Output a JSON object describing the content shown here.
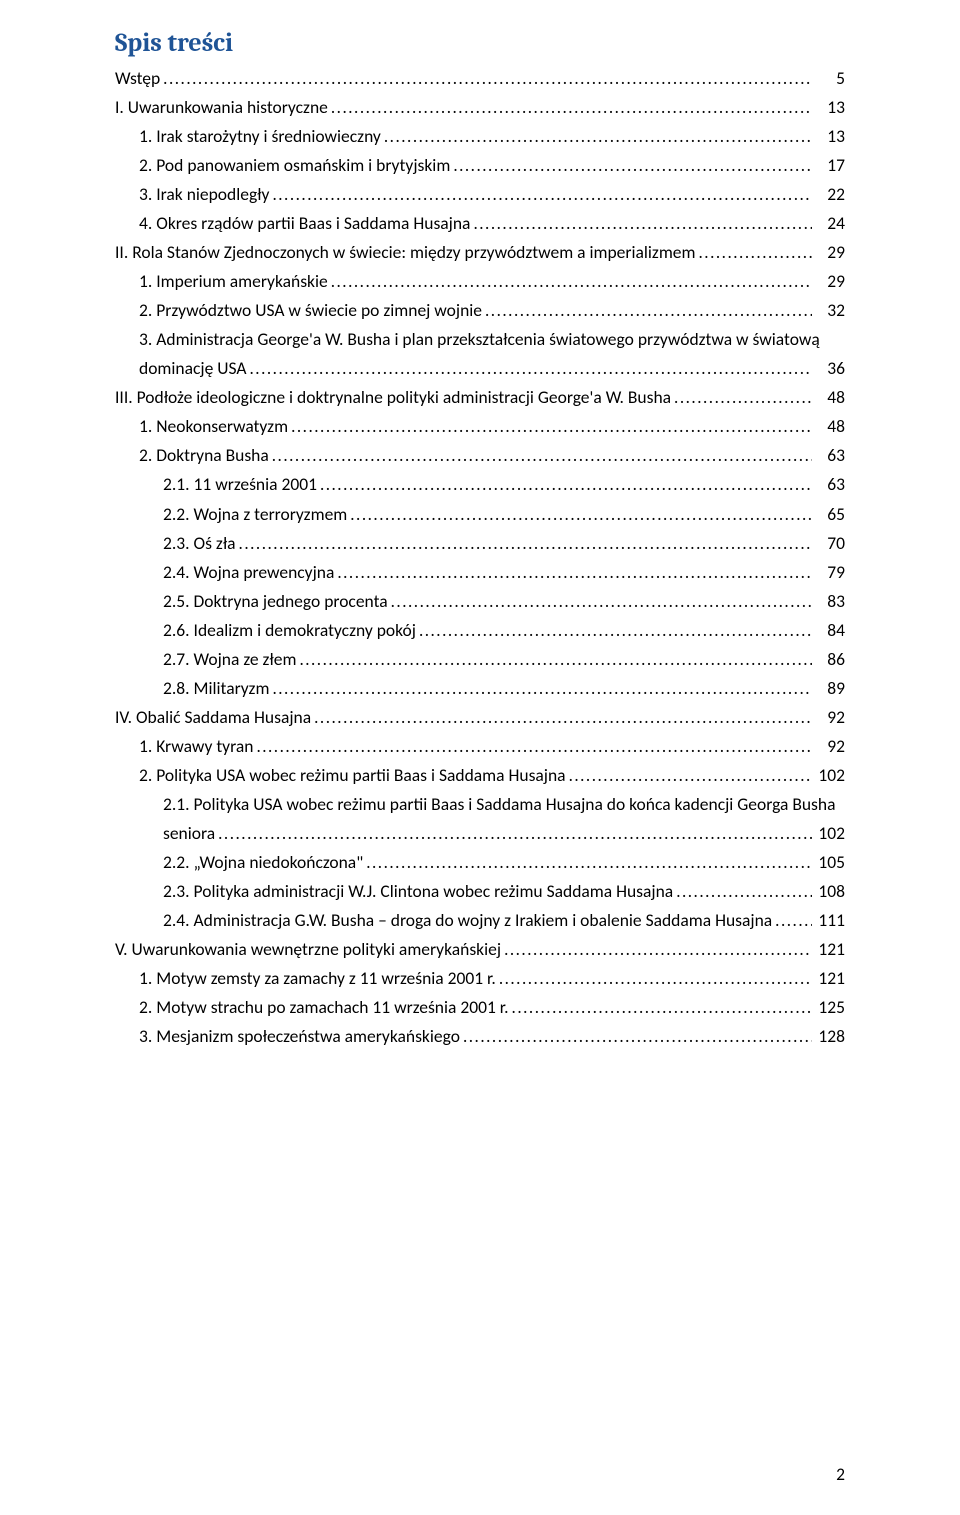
{
  "heading": "Spis treści",
  "page_number": "2",
  "colors": {
    "heading": "#1f5496",
    "text": "#000000",
    "background": "#ffffff"
  },
  "typography": {
    "heading_font": "Cambria",
    "body_font": "Calibri",
    "heading_size_pt": 20,
    "body_size_pt": 13
  },
  "toc": [
    {
      "indent": 0,
      "label": "Wstęp",
      "page": "5"
    },
    {
      "indent": 0,
      "label": "I. Uwarunkowania historyczne",
      "page": "13"
    },
    {
      "indent": 1,
      "label": "1. Irak starożytny i średniowieczny",
      "page": "13"
    },
    {
      "indent": 1,
      "label": "2. Pod panowaniem osmańskim i brytyjskim",
      "page": "17"
    },
    {
      "indent": 1,
      "label": "3. Irak niepodległy",
      "page": "22"
    },
    {
      "indent": 1,
      "label": "4. Okres rządów partii Baas i Saddama Husajna",
      "page": "24"
    },
    {
      "indent": 0,
      "label": "II. Rola Stanów Zjednoczonych w świecie: między przywództwem a imperializmem",
      "page": "29"
    },
    {
      "indent": 1,
      "label": "1. Imperium amerykańskie",
      "page": "29"
    },
    {
      "indent": 1,
      "label": "2. Przywództwo USA w świecie po zimnej wojnie",
      "page": "32"
    },
    {
      "indent": 1,
      "label_line1": "3. Administracja George'a W. Busha i plan przekształcenia światowego przywództwa w światową",
      "label_line2": "dominację USA",
      "page": "36",
      "two_line": true
    },
    {
      "indent": 0,
      "label": "III. Podłoże ideologiczne i doktrynalne polityki administracji George'a W. Busha",
      "page": "48"
    },
    {
      "indent": 1,
      "label": "1. Neokonserwatyzm",
      "page": "48"
    },
    {
      "indent": 1,
      "label": "2. Doktryna Busha",
      "page": "63"
    },
    {
      "indent": 2,
      "label": "2.1. 11 września 2001",
      "page": "63"
    },
    {
      "indent": 2,
      "label": "2.2. Wojna z terroryzmem",
      "page": "65"
    },
    {
      "indent": 2,
      "label": "2.3. Oś zła",
      "page": "70"
    },
    {
      "indent": 2,
      "label": "2.4. Wojna prewencyjna",
      "page": "79"
    },
    {
      "indent": 2,
      "label": "2.5. Doktryna jednego procenta",
      "page": "83"
    },
    {
      "indent": 2,
      "label": "2.6. Idealizm i demokratyczny pokój",
      "page": "84"
    },
    {
      "indent": 2,
      "label": "2.7. Wojna ze złem",
      "page": "86"
    },
    {
      "indent": 2,
      "label": "2.8. Militaryzm",
      "page": "89"
    },
    {
      "indent": 0,
      "label": "IV. Obalić Saddama Husajna",
      "page": "92"
    },
    {
      "indent": 1,
      "label": "1. Krwawy tyran",
      "page": "92"
    },
    {
      "indent": 1,
      "label": "2. Polityka USA wobec reżimu partii Baas i Saddama Husajna",
      "page": "102"
    },
    {
      "indent": 2,
      "label_line1": "2.1. Polityka USA wobec reżimu partii Baas i Saddama Husajna do końca kadencji Georga Busha",
      "label_line2": "seniora",
      "page": "102",
      "two_line": true
    },
    {
      "indent": 2,
      "label": "2.2. „Wojna niedokończona\"",
      "page": "105"
    },
    {
      "indent": 2,
      "label": "2.3. Polityka administracji W.J. Clintona wobec reżimu Saddama Husajna",
      "page": "108"
    },
    {
      "indent": 2,
      "label": "2.4. Administracja G.W. Busha – droga do wojny z Irakiem i obalenie Saddama Husajna",
      "page": "111"
    },
    {
      "indent": 0,
      "label": "V. Uwarunkowania wewnętrzne polityki amerykańskiej",
      "page": "121"
    },
    {
      "indent": 1,
      "label": "1. Motyw zemsty za zamachy z 11 września 2001 r.",
      "page": "121"
    },
    {
      "indent": 1,
      "label": "2. Motyw strachu po zamachach 11 września 2001 r.",
      "page": "125"
    },
    {
      "indent": 1,
      "label": "3. Mesjanizm społeczeństwa amerykańskiego",
      "page": "128"
    }
  ]
}
